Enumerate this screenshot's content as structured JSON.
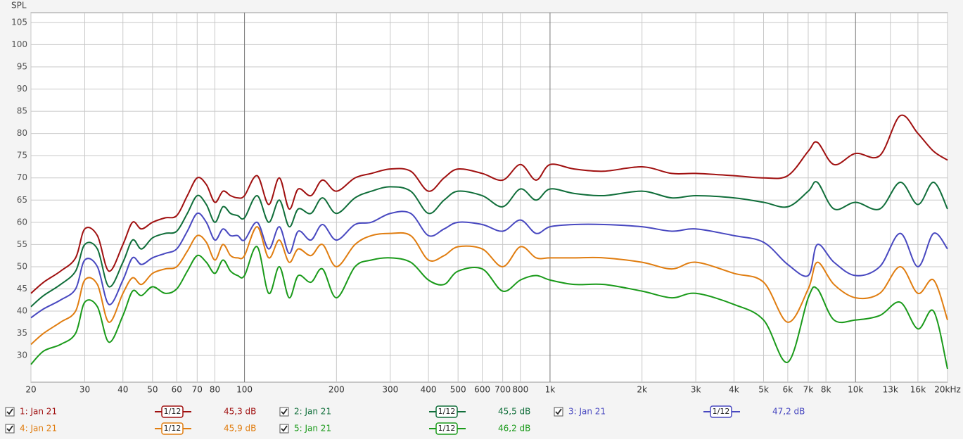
{
  "chart_data": {
    "type": "line",
    "y_label": "SPL",
    "x_scale": "log",
    "grid": true,
    "xlim": [
      20,
      20000
    ],
    "ylim": [
      24,
      107.2
    ],
    "yticks": [
      30,
      35,
      40,
      45,
      50,
      55,
      60,
      65,
      70,
      75,
      80,
      85,
      90,
      95,
      100,
      105
    ],
    "xticks": [
      20,
      30,
      40,
      50,
      60,
      70,
      80,
      100,
      200,
      300,
      400,
      500,
      600,
      700,
      800,
      {
        "value": 1000,
        "label": "1k"
      },
      {
        "value": 2000,
        "label": "2k"
      },
      {
        "value": 3000,
        "label": "3k"
      },
      {
        "value": 4000,
        "label": "4k"
      },
      {
        "value": 5000,
        "label": "5k"
      },
      {
        "value": 6000,
        "label": "6k"
      },
      {
        "value": 7000,
        "label": "7k"
      },
      {
        "value": 8000,
        "label": "8k"
      },
      {
        "value": 10000,
        "label": "10k"
      },
      {
        "value": 13000,
        "label": "13k"
      },
      {
        "value": 16000,
        "label": "16k"
      },
      {
        "value": 20000,
        "label": "20kHz"
      }
    ],
    "x": [
      20,
      22,
      25,
      28,
      30,
      33,
      36,
      40,
      43,
      46,
      50,
      55,
      60,
      65,
      70,
      75,
      80,
      85,
      90,
      95,
      100,
      110,
      120,
      130,
      140,
      150,
      165,
      180,
      200,
      230,
      260,
      300,
      350,
      400,
      450,
      500,
      600,
      700,
      800,
      900,
      1000,
      1200,
      1500,
      2000,
      2500,
      3000,
      4000,
      5000,
      6000,
      7000,
      7500,
      8500,
      10000,
      12000,
      14000,
      16000,
      18000,
      20000
    ],
    "series": [
      {
        "name": "1: Jan 21",
        "color": "#a01010",
        "smoothing": "1/12",
        "level": "45,3 dB",
        "values": [
          44,
          46.5,
          49,
          52,
          58.5,
          57,
          49,
          55,
          60,
          58.5,
          60,
          61,
          61.5,
          66,
          70,
          68.5,
          64.5,
          67,
          66,
          65.5,
          66,
          70.5,
          64,
          70,
          63,
          67.5,
          66,
          69.5,
          67,
          70,
          71,
          72,
          71.5,
          67,
          70,
          72,
          71,
          69.5,
          73,
          69.5,
          73,
          72,
          71.5,
          72.5,
          71,
          71,
          70.5,
          70,
          70.5,
          76,
          78,
          73,
          75.5,
          75,
          84,
          80,
          76,
          74
        ]
      },
      {
        "name": "2: Jan 21",
        "color": "#106e3a",
        "smoothing": "1/12",
        "level": "45,5 dB",
        "values": [
          41,
          43.5,
          46,
          49,
          55,
          54,
          45.5,
          51,
          56,
          54,
          56.5,
          57.5,
          58,
          62,
          66,
          64,
          60,
          63.5,
          62,
          61.5,
          61,
          66,
          60,
          65,
          59,
          63,
          62,
          65.5,
          62,
          65.5,
          67,
          68,
          67,
          62,
          65,
          67,
          66,
          63.5,
          67.5,
          65,
          67.5,
          66.5,
          66,
          67,
          65.5,
          66,
          65.5,
          64.5,
          63.5,
          67,
          69,
          63,
          64.5,
          63,
          69,
          64,
          69,
          63
        ]
      },
      {
        "name": "3: Jan 21",
        "color": "#4848c0",
        "smoothing": "1/12",
        "level": "47,2 dB",
        "values": [
          38.5,
          40.5,
          42.5,
          45,
          51.5,
          50,
          41.5,
          47,
          52,
          50.5,
          52,
          53,
          54,
          58,
          62,
          60,
          56,
          58.5,
          57,
          57,
          56,
          60,
          54,
          59,
          53,
          58,
          56,
          59.5,
          56,
          59.5,
          60,
          62,
          62,
          57,
          58.5,
          60,
          59.5,
          58,
          60.5,
          57.5,
          59,
          59.5,
          59.5,
          59,
          58,
          58.5,
          57,
          55.5,
          50.5,
          48,
          55,
          51,
          48,
          50,
          57.5,
          50,
          57.5,
          54
        ]
      },
      {
        "name": "4: Jan 21",
        "color": "#e07d10",
        "smoothing": "1/12",
        "level": "45,9 dB",
        "values": [
          32.5,
          35,
          37.5,
          40,
          47,
          46,
          37.5,
          44,
          47.5,
          46,
          48.5,
          49.5,
          50,
          53.5,
          57,
          55.5,
          51.5,
          55,
          52.5,
          52,
          52.5,
          59,
          52,
          56,
          51,
          54,
          52.5,
          55,
          50,
          55,
          57,
          57.5,
          57,
          51.5,
          52.5,
          54.5,
          54,
          50,
          54.5,
          52,
          52,
          52,
          52,
          51,
          49.5,
          51,
          48.5,
          46.5,
          37.5,
          45,
          51,
          46,
          43,
          44,
          50,
          44,
          47,
          38
        ]
      },
      {
        "name": "5: Jan 21",
        "color": "#1a9a1a",
        "smoothing": "1/12",
        "level": "46,2 dB",
        "values": [
          28,
          31,
          32.5,
          35,
          42,
          41,
          33,
          39,
          44.5,
          43.5,
          45.5,
          44,
          45,
          49,
          52.5,
          51,
          48.5,
          51.5,
          49,
          48,
          48,
          54.5,
          44,
          50,
          43,
          48,
          46.5,
          49.5,
          43,
          50,
          51.5,
          52,
          51,
          47,
          46,
          49,
          49.5,
          44.5,
          47,
          48,
          47,
          46,
          46,
          44.5,
          43,
          44,
          41.5,
          38,
          28.5,
          43,
          45,
          38,
          38,
          39,
          42,
          36,
          40,
          27
        ]
      }
    ]
  }
}
